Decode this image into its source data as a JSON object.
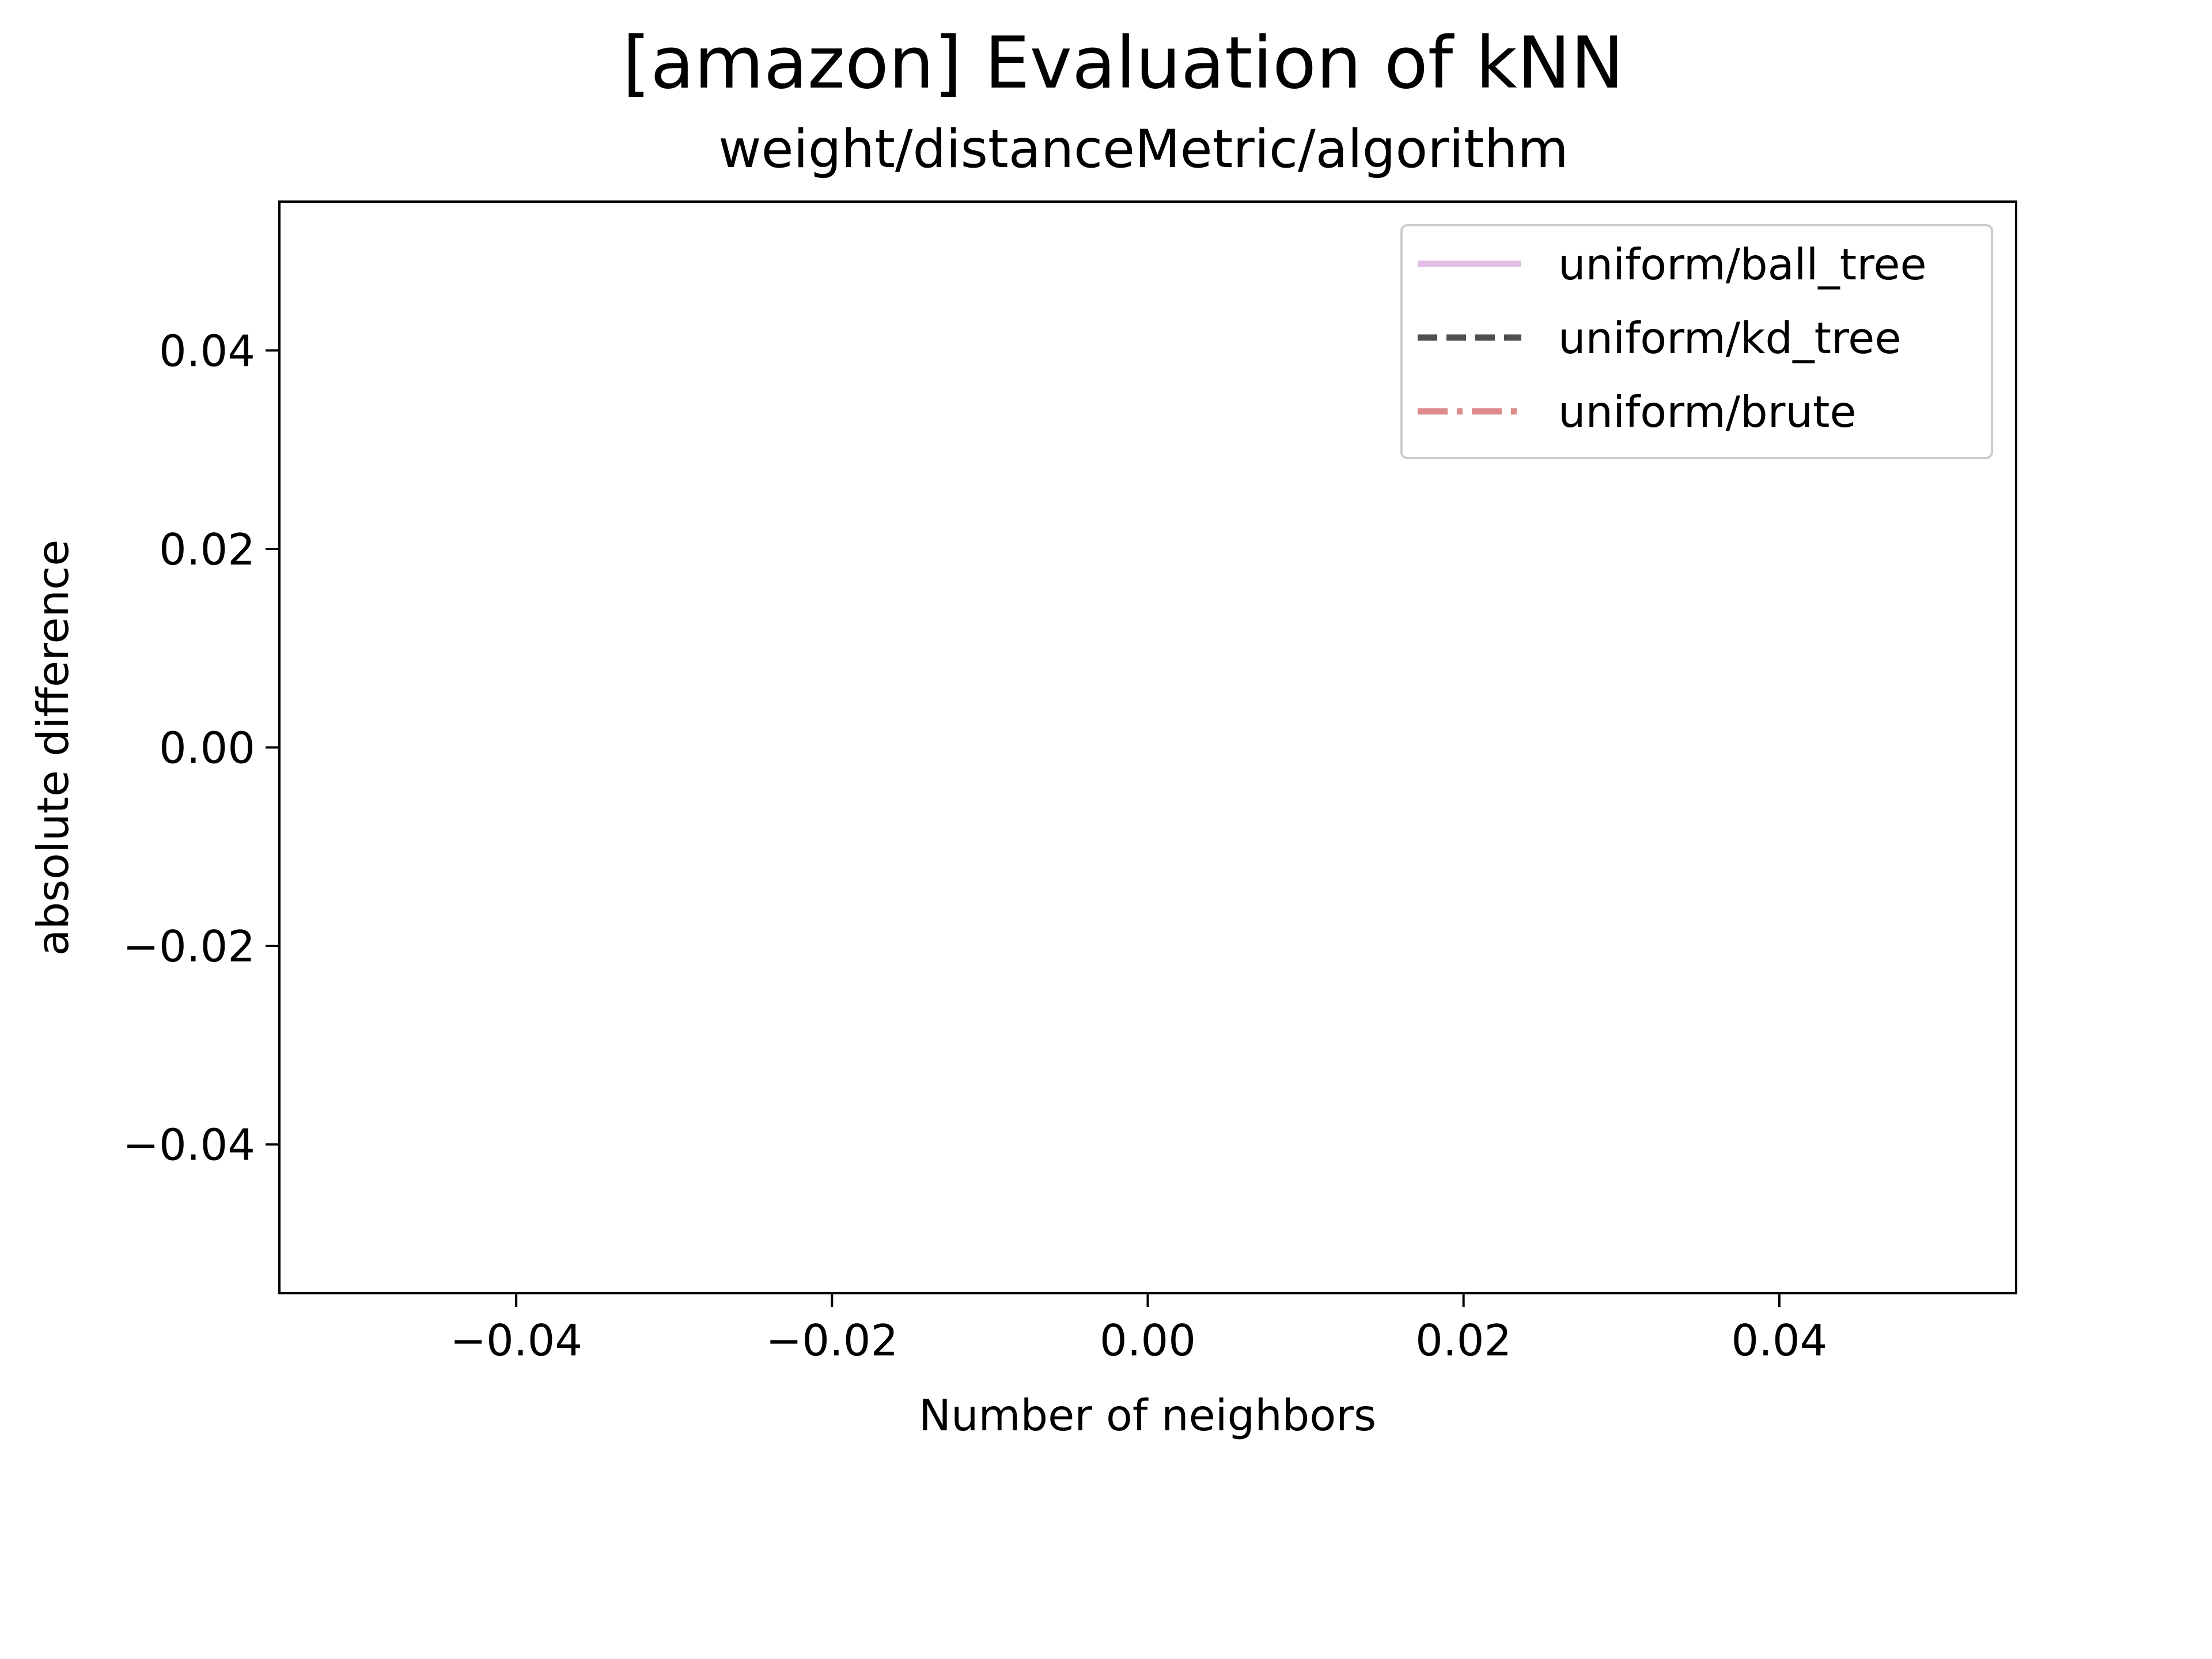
{
  "chart_data": {
    "type": "line",
    "title": "[amazon] Evaluation of kNN",
    "subtitle": "weight/distanceMetric/algorithm",
    "xlabel": "Number of neighbors",
    "ylabel": "absolute difference",
    "xlim": [
      -0.055,
      0.055
    ],
    "ylim": [
      -0.055,
      0.055
    ],
    "x_ticks": [
      -0.04,
      -0.02,
      0.0,
      0.02,
      0.04
    ],
    "x_tick_labels": [
      "−0.04",
      "−0.02",
      "0.00",
      "0.02",
      "0.04"
    ],
    "y_ticks": [
      0.04,
      0.02,
      0.0,
      -0.02,
      -0.04
    ],
    "y_tick_labels": [
      "0.04",
      "0.02",
      "0.00",
      "−0.02",
      "−0.04"
    ],
    "grid": false,
    "legend_position": "top-right",
    "series": [
      {
        "name": "uniform/ball_tree",
        "x": [],
        "y": [],
        "color": "#e2bde6",
        "line_style": "solid"
      },
      {
        "name": "uniform/kd_tree",
        "x": [],
        "y": [],
        "color": "#4f4f4f",
        "line_style": "dashed"
      },
      {
        "name": "uniform/brute",
        "x": [],
        "y": [],
        "color": "#dc8a8a",
        "line_style": "dashdot"
      }
    ]
  }
}
